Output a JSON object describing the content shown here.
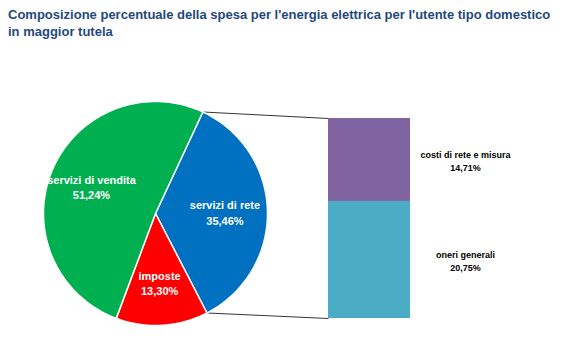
{
  "chart_data": [
    {
      "type": "pie",
      "title": "Composizione percentuale della spesa per l'energia elettrica per l'utente tipo domestico in maggior tutela",
      "categories": [
        "servizi di rete",
        "imposte",
        "servizi di vendita"
      ],
      "values": [
        35.46,
        13.3,
        51.24
      ],
      "value_labels": [
        "35,46%",
        "13,30%",
        "51,24%"
      ],
      "colors": [
        "#0070c0",
        "#ff0000",
        "#00b050"
      ],
      "data_labels": true,
      "tick_labels": false
    },
    {
      "type": "bar",
      "stacked": true,
      "categories": [
        "costi di rete e misura",
        "oneri generali"
      ],
      "values": [
        14.71,
        20.75
      ],
      "value_labels": [
        "14,71%",
        "20,75%"
      ],
      "colors": [
        "#8064a2",
        "#4bacc6"
      ],
      "data_labels": true,
      "tick_labels": false
    }
  ]
}
